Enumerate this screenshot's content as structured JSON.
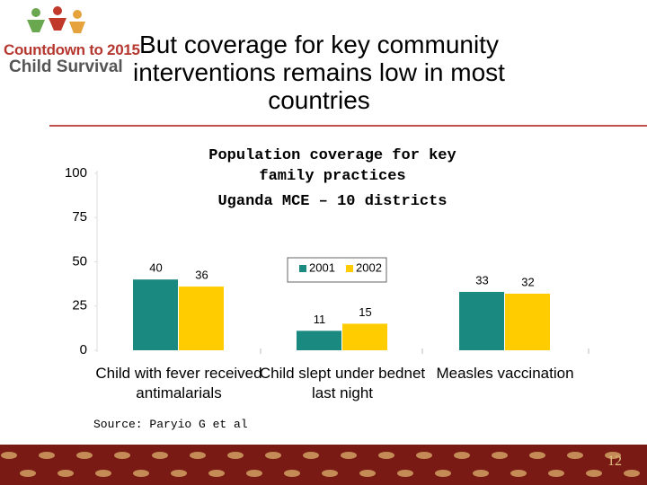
{
  "logo": {
    "line1": "Countdown to 2015",
    "line2": "Child Survival"
  },
  "slide": {
    "title": "But coverage for key community interventions remains low in most countries",
    "source": "Source: Paryio G et al",
    "page": "12"
  },
  "chart_data": {
    "type": "bar",
    "title": "Population coverage for key family practices",
    "subtitle": "Uganda MCE – 10 districts",
    "categories": [
      "Child with fever received antimalarials",
      "Child slept under bednet last night",
      "Measles vaccination"
    ],
    "series": [
      {
        "name": "2001",
        "color": "#1a8a80",
        "values": [
          40,
          11,
          33
        ]
      },
      {
        "name": "2002",
        "color": "#ffcc00",
        "values": [
          36,
          15,
          32
        ]
      }
    ],
    "ylim": [
      0,
      100
    ],
    "yticks": [
      0,
      25,
      50,
      75,
      100
    ]
  }
}
